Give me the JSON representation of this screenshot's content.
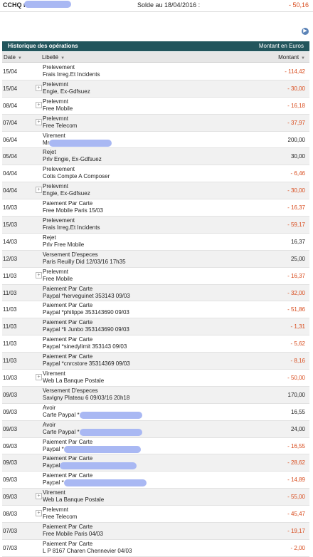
{
  "header": {
    "account_label": "CCHQ n°",
    "balance_label": "Solde au 18/04/2016 :",
    "balance_value": "- 50,16"
  },
  "section": {
    "title": "Historique des opérations",
    "currency": "Montant en Euros"
  },
  "columns": {
    "date": "Date",
    "libelle": "Libellé",
    "montant": "Montant"
  },
  "rows": [
    {
      "date": "15/04",
      "plus": false,
      "l1": "Prelevement",
      "l2": "Frais Irreg.Et Incidents",
      "amount": "- 114,42",
      "neg": true
    },
    {
      "date": "15/04",
      "plus": true,
      "l1": "Prelevmnt",
      "l2": "Engie, Ex-Gdfsuez",
      "amount": "- 30,00",
      "neg": true
    },
    {
      "date": "08/04",
      "plus": true,
      "l1": "Prelevmnt",
      "l2": "Free Mobile",
      "amount": "- 16,18",
      "neg": true
    },
    {
      "date": "07/04",
      "plus": true,
      "l1": "Prelevmnt",
      "l2": "Free Telecom",
      "amount": "- 37,97",
      "neg": true
    },
    {
      "date": "06/04",
      "plus": false,
      "l1": "Virement",
      "l2": "Mr",
      "mask": true,
      "amount": "200,00",
      "neg": false
    },
    {
      "date": "05/04",
      "plus": false,
      "l1": "Rejet",
      "l2": "Prlv Engie, Ex-Gdfsuez",
      "amount": "30,00",
      "neg": false
    },
    {
      "date": "04/04",
      "plus": false,
      "l1": "Prelevement",
      "l2": "Cotis Compte A Composer",
      "amount": "- 6,46",
      "neg": true
    },
    {
      "date": "04/04",
      "plus": true,
      "l1": "Prelevmnt",
      "l2": "Engie, Ex-Gdfsuez",
      "amount": "- 30,00",
      "neg": true
    },
    {
      "date": "16/03",
      "plus": false,
      "l1": "Paiement Par Carte",
      "l2": "Free Mobile Paris 15/03",
      "amount": "- 16,37",
      "neg": true
    },
    {
      "date": "15/03",
      "plus": false,
      "l1": "Prelevement",
      "l2": "Frais Irreg.Et Incidents",
      "amount": "- 59,17",
      "neg": true
    },
    {
      "date": "14/03",
      "plus": false,
      "l1": "Rejet",
      "l2": "Prlv Free Mobile",
      "amount": "16,37",
      "neg": false
    },
    {
      "date": "12/03",
      "plus": false,
      "l1": "Versement D'especes",
      "l2": "Paris Reuilly Did 12/03/16 17h35",
      "amount": "25,00",
      "neg": false
    },
    {
      "date": "11/03",
      "plus": true,
      "l1": "Prelevmnt",
      "l2": "Free Mobile",
      "amount": "- 16,37",
      "neg": true
    },
    {
      "date": "11/03",
      "plus": false,
      "l1": "Paiement Par Carte",
      "l2": "Paypal *herveguinet 353143 09/03",
      "amount": "- 32,00",
      "neg": true
    },
    {
      "date": "11/03",
      "plus": false,
      "l1": "Paiement Par Carte",
      "l2": "Paypal *philippe 353143690 09/03",
      "amount": "- 51,86",
      "neg": true
    },
    {
      "date": "11/03",
      "plus": false,
      "l1": "Paiement Par Carte",
      "l2": "Paypal *li Junbo 353143690 09/03",
      "amount": "- 1,31",
      "neg": true
    },
    {
      "date": "11/03",
      "plus": false,
      "l1": "Paiement Par Carte",
      "l2": "Paypal *sinedylimit 353143 09/03",
      "amount": "- 5,62",
      "neg": true
    },
    {
      "date": "11/03",
      "plus": false,
      "l1": "Paiement Par Carte",
      "l2": "Paypal *cnrcstore 35314369 09/03",
      "amount": "- 8,16",
      "neg": true
    },
    {
      "date": "10/03",
      "plus": true,
      "l1": "Virement",
      "l2": "Web La Banque Postale",
      "amount": "- 50,00",
      "neg": true
    },
    {
      "date": "09/03",
      "plus": false,
      "l1": "Versement D'especes",
      "l2": "Savigny Plateau 6 09/03/16 20h18",
      "amount": "170,00",
      "neg": false
    },
    {
      "date": "09/03",
      "plus": false,
      "l1": "Avoir",
      "l2": "Carte Paypal *",
      "mask": true,
      "amount": "16,55",
      "neg": false
    },
    {
      "date": "09/03",
      "plus": false,
      "l1": "Avoir",
      "l2": "Carte Paypal *",
      "mask": true,
      "amount": "24,00",
      "neg": false
    },
    {
      "date": "09/03",
      "plus": false,
      "l1": "Paiement Par Carte",
      "l2": "Paypal *",
      "mask": true,
      "amount": "- 16,55",
      "neg": true
    },
    {
      "date": "09/03",
      "plus": false,
      "l1": "Paiement Par Carte",
      "l2": "Paypal",
      "mask": true,
      "amount": "- 28,62",
      "neg": true
    },
    {
      "date": "09/03",
      "plus": false,
      "l1": "Paiement Par Carte",
      "l2": "Paypal *",
      "mask": true,
      "amount": "- 14,89",
      "neg": true
    },
    {
      "date": "09/03",
      "plus": true,
      "l1": "Virement",
      "l2": "Web La Banque Postale",
      "amount": "- 55,00",
      "neg": true
    },
    {
      "date": "08/03",
      "plus": true,
      "l1": "Prelevmnt",
      "l2": "Free Telecom",
      "amount": "- 45,47",
      "neg": true
    },
    {
      "date": "07/03",
      "plus": false,
      "l1": "Paiement Par Carte",
      "l2": "Free Mobile Paris 04/03",
      "amount": "- 19,17",
      "neg": true
    },
    {
      "date": "07/03",
      "plus": false,
      "l1": "Paiement Par Carte",
      "l2": "L P 8167 Charen Chennevier 04/03",
      "amount": "- 2,00",
      "neg": true
    }
  ]
}
